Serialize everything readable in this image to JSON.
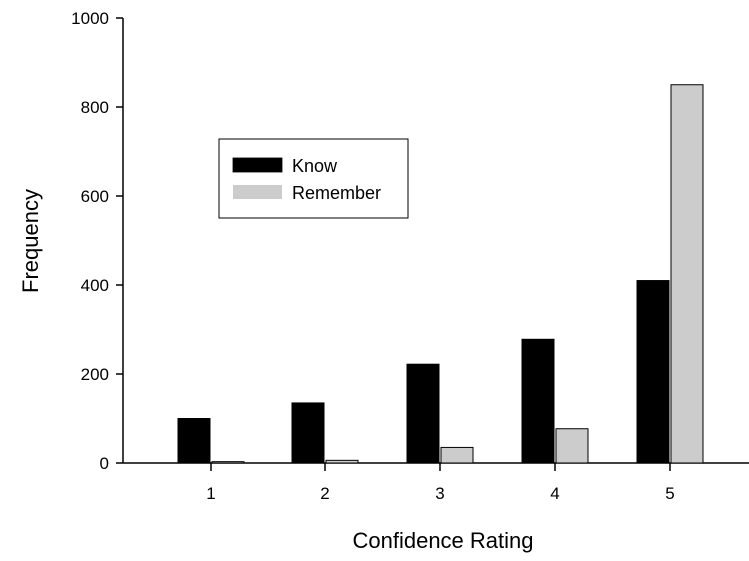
{
  "chart_data": {
    "type": "bar",
    "categories": [
      "1",
      "2",
      "3",
      "4",
      "5"
    ],
    "series": [
      {
        "name": "Know",
        "values": [
          100,
          135,
          222,
          278,
          410
        ],
        "color": "#000000"
      },
      {
        "name": "Remember",
        "values": [
          3,
          6,
          35,
          77,
          850
        ],
        "color": "#cccccc"
      }
    ],
    "title": "",
    "xlabel": "Confidence Rating",
    "ylabel": "Frequency",
    "ylim": [
      0,
      1000
    ],
    "yticks": [
      "0",
      "200",
      "400",
      "600",
      "800",
      "1000"
    ],
    "grid": false,
    "legend_position": "upper-left"
  }
}
